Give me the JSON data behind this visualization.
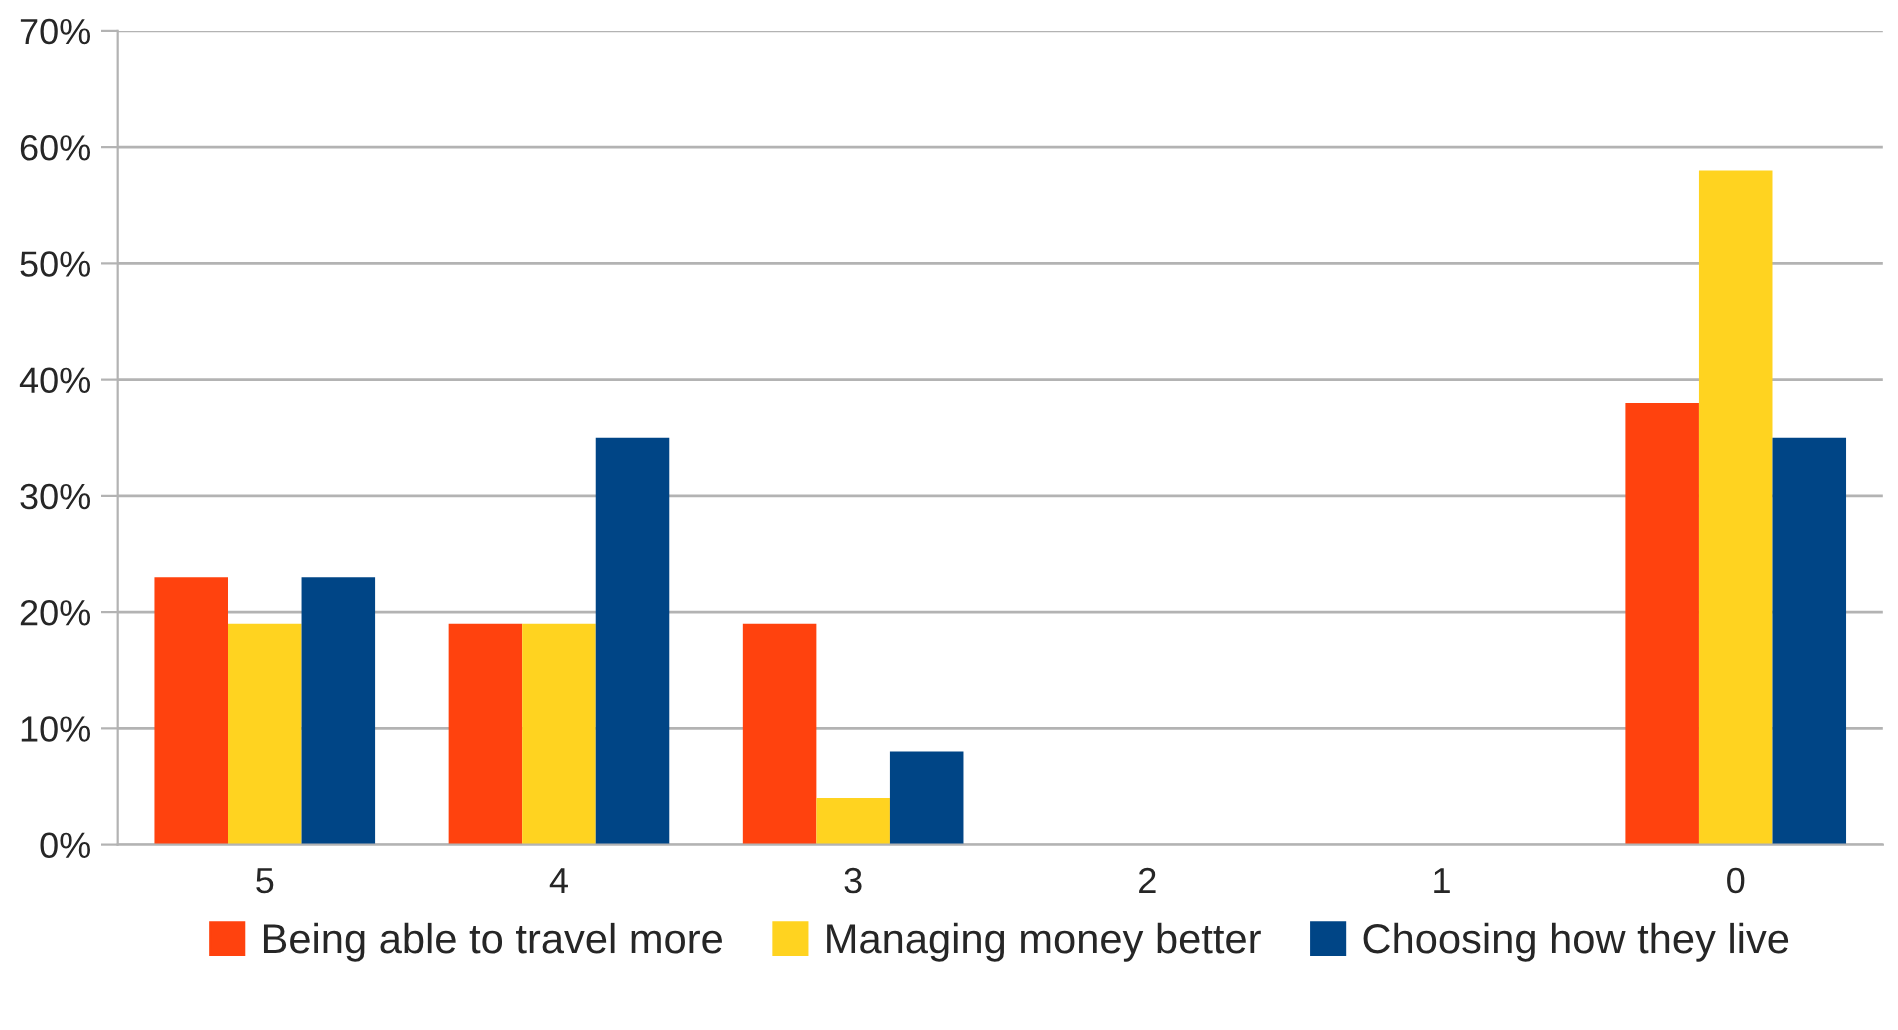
{
  "chart_data": {
    "type": "bar",
    "categories": [
      "5",
      "4",
      "3",
      "2",
      "1",
      "0"
    ],
    "series": [
      {
        "name": "Being able to travel more",
        "color": "#ff420e",
        "values": [
          23,
          19,
          19,
          0,
          0,
          38
        ]
      },
      {
        "name": "Managing money better",
        "color": "#ffd320",
        "values": [
          19,
          19,
          4,
          0,
          0,
          58
        ]
      },
      {
        "name": "Choosing how they live",
        "color": "#004586",
        "values": [
          23,
          35,
          8,
          0,
          0,
          35
        ]
      }
    ],
    "ylim": [
      0,
      70
    ],
    "yticks": [
      {
        "value": 0,
        "label": "0%"
      },
      {
        "value": 10,
        "label": "10%"
      },
      {
        "value": 20,
        "label": "20%"
      },
      {
        "value": 30,
        "label": "30%"
      },
      {
        "value": 40,
        "label": "40%"
      },
      {
        "value": 50,
        "label": "50%"
      },
      {
        "value": 60,
        "label": "60%"
      },
      {
        "value": 70,
        "label": "70%"
      }
    ],
    "grid": "y",
    "legend": "bottom"
  }
}
